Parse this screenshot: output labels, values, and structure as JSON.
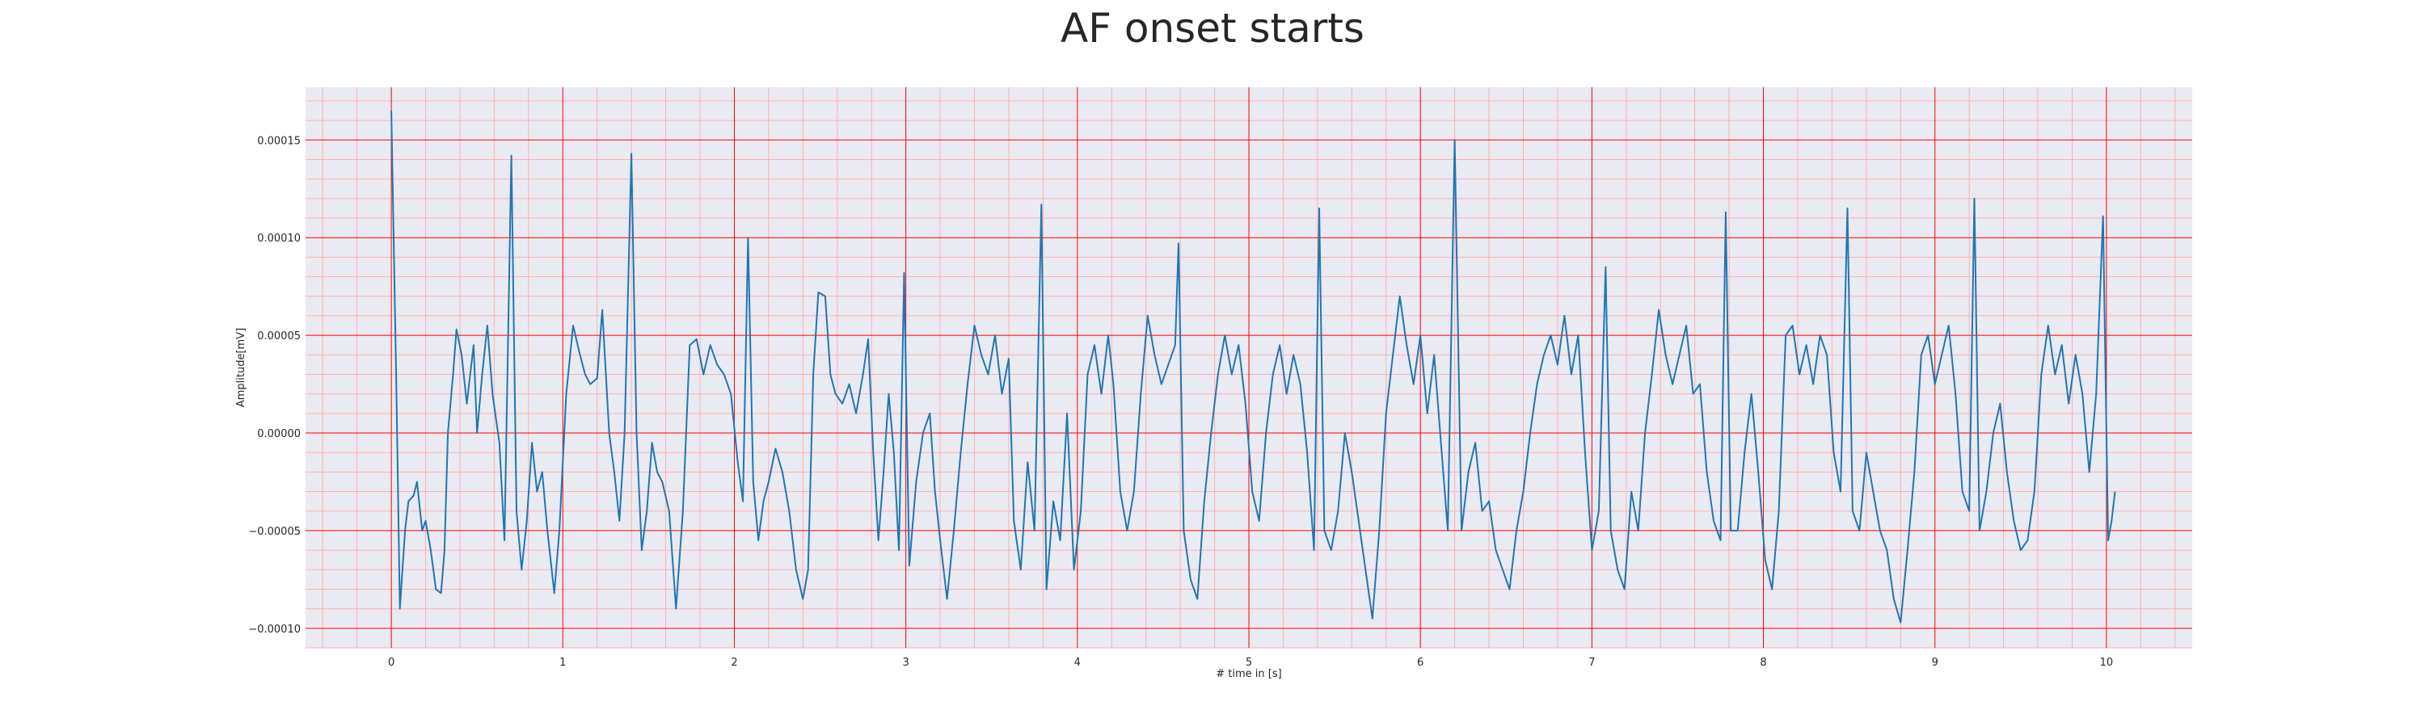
{
  "chart_data": {
    "type": "line",
    "title": "AF onset starts",
    "xlabel": "# time in [s]",
    "ylabel": "Amplitude[mV]",
    "xlim": [
      -0.5,
      10.5
    ],
    "ylim": [
      -0.00011,
      0.000177
    ],
    "x_ticks": [
      0,
      1,
      2,
      3,
      4,
      5,
      6,
      7,
      8,
      9,
      10
    ],
    "x_tick_labels": [
      "0",
      "1",
      "2",
      "3",
      "4",
      "5",
      "6",
      "7",
      "8",
      "9",
      "10"
    ],
    "y_ticks": [
      -0.0001,
      -5e-05,
      0,
      5e-05,
      0.0001,
      0.00015
    ],
    "y_tick_labels": [
      "−0.00010",
      "−0.00005",
      "0.00000",
      "0.00005",
      "0.00010",
      "0.00015"
    ],
    "grid": {
      "major": true,
      "minor": true,
      "major_color": "#ff0000",
      "minor_color": "#ffb0b0"
    },
    "background_color": "#eaeaf2",
    "series": [
      {
        "color": "#1f77b4",
        "points": [
          [
            0.0,
            0.000165
          ],
          [
            0.03,
            2e-05
          ],
          [
            0.05,
            -9e-05
          ],
          [
            0.08,
            -5e-05
          ],
          [
            0.1,
            -3.5e-05
          ],
          [
            0.13,
            -3.2e-05
          ],
          [
            0.15,
            -2.5e-05
          ],
          [
            0.18,
            -5e-05
          ],
          [
            0.2,
            -4.5e-05
          ],
          [
            0.23,
            -6e-05
          ],
          [
            0.26,
            -8e-05
          ],
          [
            0.29,
            -8.2e-05
          ],
          [
            0.31,
            -6e-05
          ],
          [
            0.33,
            0.0
          ],
          [
            0.36,
            3e-05
          ],
          [
            0.38,
            5.3e-05
          ],
          [
            0.41,
            4e-05
          ],
          [
            0.44,
            1.5e-05
          ],
          [
            0.46,
            3e-05
          ],
          [
            0.48,
            4.5e-05
          ],
          [
            0.5,
            0.0
          ],
          [
            0.53,
            3e-05
          ],
          [
            0.56,
            5.5e-05
          ],
          [
            0.59,
            2e-05
          ],
          [
            0.63,
            -5e-06
          ],
          [
            0.66,
            -5.5e-05
          ],
          [
            0.7,
            0.000142
          ],
          [
            0.73,
            -4e-05
          ],
          [
            0.76,
            -7e-05
          ],
          [
            0.79,
            -4.5e-05
          ],
          [
            0.82,
            -5e-06
          ],
          [
            0.85,
            -3e-05
          ],
          [
            0.88,
            -2e-05
          ],
          [
            0.91,
            -5e-05
          ],
          [
            0.95,
            -8.2e-05
          ],
          [
            0.98,
            -5e-05
          ],
          [
            1.02,
            2e-05
          ],
          [
            1.06,
            5.5e-05
          ],
          [
            1.1,
            4e-05
          ],
          [
            1.13,
            3e-05
          ],
          [
            1.16,
            2.5e-05
          ],
          [
            1.2,
            2.8e-05
          ],
          [
            1.23,
            6.3e-05
          ],
          [
            1.27,
            0.0
          ],
          [
            1.3,
            -2e-05
          ],
          [
            1.33,
            -4.5e-05
          ],
          [
            1.36,
            0.0
          ],
          [
            1.4,
            0.000143
          ],
          [
            1.43,
            0.0
          ],
          [
            1.46,
            -6e-05
          ],
          [
            1.49,
            -4e-05
          ],
          [
            1.52,
            -5e-06
          ],
          [
            1.55,
            -2e-05
          ],
          [
            1.58,
            -2.5e-05
          ],
          [
            1.62,
            -4e-05
          ],
          [
            1.66,
            -9e-05
          ],
          [
            1.7,
            -4e-05
          ],
          [
            1.74,
            4.5e-05
          ],
          [
            1.78,
            4.8e-05
          ],
          [
            1.82,
            3e-05
          ],
          [
            1.86,
            4.5e-05
          ],
          [
            1.9,
            3.5e-05
          ],
          [
            1.94,
            3e-05
          ],
          [
            1.98,
            2e-05
          ],
          [
            2.02,
            -1.5e-05
          ],
          [
            2.05,
            -3.5e-05
          ],
          [
            2.08,
            0.0001
          ],
          [
            2.11,
            -2.5e-05
          ],
          [
            2.14,
            -5.5e-05
          ],
          [
            2.17,
            -3.5e-05
          ],
          [
            2.2,
            -2.5e-05
          ],
          [
            2.24,
            -8e-06
          ],
          [
            2.28,
            -2e-05
          ],
          [
            2.32,
            -4e-05
          ],
          [
            2.36,
            -7e-05
          ],
          [
            2.4,
            -8.5e-05
          ],
          [
            2.43,
            -7e-05
          ],
          [
            2.46,
            3e-05
          ],
          [
            2.49,
            7.2e-05
          ],
          [
            2.53,
            7e-05
          ],
          [
            2.56,
            3e-05
          ],
          [
            2.59,
            2e-05
          ],
          [
            2.63,
            1.5e-05
          ],
          [
            2.67,
            2.5e-05
          ],
          [
            2.71,
            1e-05
          ],
          [
            2.75,
            3e-05
          ],
          [
            2.78,
            4.8e-05
          ],
          [
            2.81,
            -1e-05
          ],
          [
            2.84,
            -5.5e-05
          ],
          [
            2.87,
            -2e-05
          ],
          [
            2.9,
            2e-05
          ],
          [
            2.93,
            -1e-05
          ],
          [
            2.96,
            -6e-05
          ],
          [
            2.99,
            8.2e-05
          ],
          [
            3.02,
            -6.8e-05
          ],
          [
            3.06,
            -2.5e-05
          ],
          [
            3.1,
            0.0
          ],
          [
            3.14,
            1e-05
          ],
          [
            3.17,
            -3e-05
          ],
          [
            3.2,
            -5.5e-05
          ],
          [
            3.24,
            -8.5e-05
          ],
          [
            3.28,
            -5e-05
          ],
          [
            3.32,
            -1e-05
          ],
          [
            3.36,
            2.5e-05
          ],
          [
            3.4,
            5.5e-05
          ],
          [
            3.44,
            4e-05
          ],
          [
            3.48,
            3e-05
          ],
          [
            3.52,
            5e-05
          ],
          [
            3.56,
            2e-05
          ],
          [
            3.6,
            3.8e-05
          ],
          [
            3.63,
            -4.5e-05
          ],
          [
            3.67,
            -7e-05
          ],
          [
            3.71,
            -1.5e-05
          ],
          [
            3.75,
            -5e-05
          ],
          [
            3.79,
            0.000117
          ],
          [
            3.82,
            -8e-05
          ],
          [
            3.86,
            -3.5e-05
          ],
          [
            3.9,
            -5.5e-05
          ],
          [
            3.94,
            1e-05
          ],
          [
            3.98,
            -7e-05
          ],
          [
            4.02,
            -4e-05
          ],
          [
            4.06,
            3e-05
          ],
          [
            4.1,
            4.5e-05
          ],
          [
            4.14,
            2e-05
          ],
          [
            4.18,
            5e-05
          ],
          [
            4.21,
            2.5e-05
          ],
          [
            4.25,
            -3e-05
          ],
          [
            4.29,
            -5e-05
          ],
          [
            4.33,
            -3e-05
          ],
          [
            4.37,
            2e-05
          ],
          [
            4.41,
            6e-05
          ],
          [
            4.45,
            4e-05
          ],
          [
            4.49,
            2.5e-05
          ],
          [
            4.53,
            3.5e-05
          ],
          [
            4.57,
            4.5e-05
          ],
          [
            4.59,
            9.7e-05
          ],
          [
            4.62,
            -5e-05
          ],
          [
            4.66,
            -7.5e-05
          ],
          [
            4.7,
            -8.5e-05
          ],
          [
            4.74,
            -3.5e-05
          ],
          [
            4.78,
            0.0
          ],
          [
            4.82,
            3e-05
          ],
          [
            4.86,
            5e-05
          ],
          [
            4.9,
            3e-05
          ],
          [
            4.94,
            4.5e-05
          ],
          [
            4.98,
            1.5e-05
          ],
          [
            5.02,
            -3e-05
          ],
          [
            5.06,
            -4.5e-05
          ],
          [
            5.1,
            0.0
          ],
          [
            5.14,
            3e-05
          ],
          [
            5.18,
            4.5e-05
          ],
          [
            5.22,
            2e-05
          ],
          [
            5.26,
            4e-05
          ],
          [
            5.3,
            2.5e-05
          ],
          [
            5.34,
            -1e-05
          ],
          [
            5.38,
            -6e-05
          ],
          [
            5.41,
            0.000115
          ],
          [
            5.44,
            -5e-05
          ],
          [
            5.48,
            -6e-05
          ],
          [
            5.52,
            -4e-05
          ],
          [
            5.56,
            0.0
          ],
          [
            5.6,
            -2e-05
          ],
          [
            5.64,
            -4.5e-05
          ],
          [
            5.68,
            -7e-05
          ],
          [
            5.72,
            -9.5e-05
          ],
          [
            5.76,
            -5e-05
          ],
          [
            5.8,
            1e-05
          ],
          [
            5.84,
            4e-05
          ],
          [
            5.88,
            7e-05
          ],
          [
            5.92,
            4.5e-05
          ],
          [
            5.96,
            2.5e-05
          ],
          [
            6.0,
            5e-05
          ],
          [
            6.04,
            1e-05
          ],
          [
            6.08,
            4e-05
          ],
          [
            6.12,
            -5e-06
          ],
          [
            6.16,
            -5e-05
          ],
          [
            6.2,
            0.00015
          ],
          [
            6.24,
            -5e-05
          ],
          [
            6.28,
            -2e-05
          ],
          [
            6.32,
            -5e-06
          ],
          [
            6.36,
            -4e-05
          ],
          [
            6.4,
            -3.5e-05
          ],
          [
            6.44,
            -6e-05
          ],
          [
            6.48,
            -7e-05
          ],
          [
            6.52,
            -8e-05
          ],
          [
            6.56,
            -5e-05
          ],
          [
            6.6,
            -3e-05
          ],
          [
            6.64,
            0.0
          ],
          [
            6.68,
            2.5e-05
          ],
          [
            6.72,
            4e-05
          ],
          [
            6.76,
            5e-05
          ],
          [
            6.8,
            3.5e-05
          ],
          [
            6.84,
            6e-05
          ],
          [
            6.88,
            3e-05
          ],
          [
            6.92,
            5e-05
          ],
          [
            6.96,
            -1e-05
          ],
          [
            7.0,
            -6e-05
          ],
          [
            7.04,
            -4e-05
          ],
          [
            7.08,
            8.5e-05
          ],
          [
            7.11,
            -5e-05
          ],
          [
            7.15,
            -7e-05
          ],
          [
            7.19,
            -8e-05
          ],
          [
            7.23,
            -3e-05
          ],
          [
            7.27,
            -5e-05
          ],
          [
            7.31,
            0.0
          ],
          [
            7.35,
            3e-05
          ],
          [
            7.39,
            6.3e-05
          ],
          [
            7.43,
            4e-05
          ],
          [
            7.47,
            2.5e-05
          ],
          [
            7.51,
            4e-05
          ],
          [
            7.55,
            5.5e-05
          ],
          [
            7.59,
            2e-05
          ],
          [
            7.63,
            2.5e-05
          ],
          [
            7.67,
            -2e-05
          ],
          [
            7.71,
            -4.5e-05
          ],
          [
            7.75,
            -5.5e-05
          ],
          [
            7.78,
            0.000113
          ],
          [
            7.81,
            -5e-05
          ],
          [
            7.85,
            -5e-05
          ],
          [
            7.89,
            -1e-05
          ],
          [
            7.93,
            2e-05
          ],
          [
            7.97,
            -2e-05
          ],
          [
            8.01,
            -6.5e-05
          ],
          [
            8.05,
            -8e-05
          ],
          [
            8.09,
            -4e-05
          ],
          [
            8.13,
            5e-05
          ],
          [
            8.17,
            5.5e-05
          ],
          [
            8.21,
            3e-05
          ],
          [
            8.25,
            4.5e-05
          ],
          [
            8.29,
            2.5e-05
          ],
          [
            8.33,
            5e-05
          ],
          [
            8.37,
            4e-05
          ],
          [
            8.41,
            -1e-05
          ],
          [
            8.45,
            -3e-05
          ],
          [
            8.49,
            0.000115
          ],
          [
            8.52,
            -4e-05
          ],
          [
            8.56,
            -5e-05
          ],
          [
            8.6,
            -1e-05
          ],
          [
            8.64,
            -3e-05
          ],
          [
            8.68,
            -5e-05
          ],
          [
            8.72,
            -6e-05
          ],
          [
            8.76,
            -8.5e-05
          ],
          [
            8.8,
            -9.7e-05
          ],
          [
            8.84,
            -6e-05
          ],
          [
            8.88,
            -2e-05
          ],
          [
            8.92,
            4e-05
          ],
          [
            8.96,
            5e-05
          ],
          [
            9.0,
            2.5e-05
          ],
          [
            9.04,
            4e-05
          ],
          [
            9.08,
            5.5e-05
          ],
          [
            9.12,
            2e-05
          ],
          [
            9.16,
            -3e-05
          ],
          [
            9.2,
            -4e-05
          ],
          [
            9.23,
            0.00012
          ],
          [
            9.26,
            -5e-05
          ],
          [
            9.3,
            -3e-05
          ],
          [
            9.34,
            0.0
          ],
          [
            9.38,
            1.5e-05
          ],
          [
            9.42,
            -2e-05
          ],
          [
            9.46,
            -4.5e-05
          ],
          [
            9.5,
            -6e-05
          ],
          [
            9.54,
            -5.5e-05
          ],
          [
            9.58,
            -3e-05
          ],
          [
            9.62,
            3e-05
          ],
          [
            9.66,
            5.5e-05
          ],
          [
            9.7,
            3e-05
          ],
          [
            9.74,
            4.5e-05
          ],
          [
            9.78,
            1.5e-05
          ],
          [
            9.82,
            4e-05
          ],
          [
            9.86,
            2e-05
          ],
          [
            9.9,
            -2e-05
          ],
          [
            9.94,
            2e-05
          ],
          [
            9.98,
            0.000111
          ],
          [
            10.01,
            -5.5e-05
          ],
          [
            10.03,
            -4.5e-05
          ],
          [
            10.05,
            -3e-05
          ]
        ]
      }
    ]
  }
}
